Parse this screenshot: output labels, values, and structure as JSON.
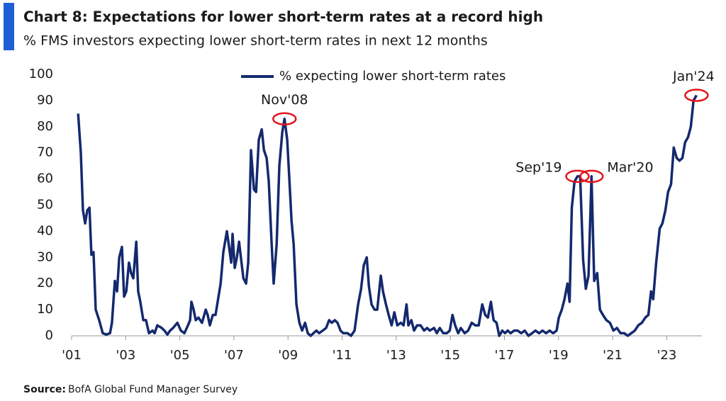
{
  "chart_data": {
    "type": "line",
    "title": "Chart 8: Expectations for lower short-term rates at a record high",
    "subtitle": "% FMS investors expecting lower short-term rates in next 12 months",
    "source_label": "Source:",
    "source": "BofA Global Fund Manager Survey",
    "legend": "top",
    "x": [
      2001.24,
      2001.34,
      2001.42,
      2001.5,
      2001.58,
      2001.66,
      2001.73,
      2001.81,
      2001.89,
      2002.02,
      2002.15,
      2002.28,
      2002.42,
      2002.49,
      2002.6,
      2002.68,
      2002.76,
      2002.86,
      2002.94,
      2003.02,
      2003.12,
      2003.2,
      2003.28,
      2003.39,
      2003.46,
      2003.54,
      2003.65,
      2003.75,
      2003.86,
      2003.99,
      2004.07,
      2004.17,
      2004.33,
      2004.43,
      2004.54,
      2004.64,
      2004.75,
      2004.91,
      2005.04,
      2005.17,
      2005.3,
      2005.38,
      2005.43,
      2005.51,
      2005.59,
      2005.69,
      2005.82,
      2005.96,
      2006.03,
      2006.11,
      2006.22,
      2006.32,
      2006.43,
      2006.51,
      2006.61,
      2006.74,
      2006.82,
      2006.9,
      2006.95,
      2007.03,
      2007.11,
      2007.19,
      2007.27,
      2007.35,
      2007.45,
      2007.53,
      2007.63,
      2007.74,
      2007.82,
      2007.92,
      2008.03,
      2008.11,
      2008.21,
      2008.29,
      2008.39,
      2008.47,
      2008.58,
      2008.68,
      2008.79,
      2008.87,
      2008.97,
      2009.05,
      2009.13,
      2009.21,
      2009.31,
      2009.42,
      2009.52,
      2009.63,
      2009.73,
      2009.84,
      2009.94,
      2010.05,
      2010.15,
      2010.28,
      2010.41,
      2010.52,
      2010.62,
      2010.73,
      2010.83,
      2010.94,
      2011.04,
      2011.2,
      2011.33,
      2011.46,
      2011.59,
      2011.7,
      2011.8,
      2011.91,
      2011.99,
      2012.09,
      2012.2,
      2012.3,
      2012.43,
      2012.51,
      2012.62,
      2012.72,
      2012.83,
      2012.93,
      2013.04,
      2013.17,
      2013.27,
      2013.38,
      2013.45,
      2013.56,
      2013.66,
      2013.77,
      2013.9,
      2014.03,
      2014.14,
      2014.24,
      2014.4,
      2014.5,
      2014.61,
      2014.74,
      2014.87,
      2014.98,
      2015.08,
      2015.18,
      2015.29,
      2015.39,
      2015.53,
      2015.66,
      2015.79,
      2015.92,
      2016.05,
      2016.18,
      2016.29,
      2016.39,
      2016.5,
      2016.6,
      2016.71,
      2016.81,
      2016.92,
      2017.02,
      2017.12,
      2017.23,
      2017.36,
      2017.49,
      2017.62,
      2017.75,
      2017.89,
      2018.02,
      2018.15,
      2018.28,
      2018.41,
      2018.54,
      2018.67,
      2018.8,
      2018.93,
      2019.01,
      2019.12,
      2019.22,
      2019.33,
      2019.41,
      2019.49,
      2019.59,
      2019.7,
      2019.8,
      2019.91,
      2020.01,
      2020.11,
      2020.22,
      2020.32,
      2020.43,
      2020.53,
      2020.64,
      2020.77,
      2020.9,
      2021.03,
      2021.16,
      2021.29,
      2021.43,
      2021.56,
      2021.69,
      2021.82,
      2021.95,
      2022.08,
      2022.21,
      2022.32,
      2022.42,
      2022.5,
      2022.61,
      2022.74,
      2022.84,
      2022.95,
      2023.05,
      2023.16,
      2023.26,
      2023.37,
      2023.47,
      2023.58,
      2023.68,
      2023.79,
      2023.89,
      2023.99,
      2024.1
    ],
    "series": [
      {
        "name": "% expecting lower short-term rates",
        "color": "#14296e",
        "values": [
          85,
          70,
          48,
          43,
          48,
          49,
          31,
          32,
          10,
          6,
          1,
          0.5,
          1,
          5,
          21,
          17,
          30,
          34,
          15,
          17,
          28,
          24,
          22,
          36,
          17,
          13,
          6,
          6,
          1,
          2,
          1,
          4,
          3,
          2,
          0.5,
          2,
          3,
          5,
          2,
          1,
          4,
          6,
          13,
          10,
          6,
          7,
          5,
          10,
          8,
          4,
          8,
          8,
          15,
          20,
          32,
          40,
          34,
          28,
          39,
          26,
          30,
          36,
          29,
          22,
          20,
          28,
          71,
          56,
          55,
          75,
          79,
          71,
          68,
          59,
          36,
          20,
          35,
          65,
          78,
          83,
          75,
          60,
          44,
          35,
          12,
          5,
          2,
          5,
          1,
          0,
          1,
          2,
          1,
          2,
          3,
          6,
          5,
          6,
          5,
          2,
          1,
          1,
          0,
          2,
          12,
          18,
          27,
          30,
          19,
          12,
          10,
          10,
          23,
          17,
          12,
          8,
          4,
          9,
          4,
          5,
          4,
          12,
          4,
          6,
          2,
          4,
          4,
          2,
          3,
          2,
          3,
          1,
          3,
          1,
          1,
          2,
          8,
          4,
          1,
          3,
          1,
          2,
          5,
          4,
          4,
          12,
          8,
          7,
          13,
          6,
          5,
          0,
          2,
          1,
          2,
          1,
          2,
          2,
          1,
          2,
          0,
          1,
          2,
          1,
          2,
          1,
          2,
          1,
          2,
          7,
          10,
          14,
          20,
          13,
          49,
          59,
          61,
          61,
          29,
          18,
          23,
          61,
          21,
          24,
          10,
          8,
          6,
          5,
          2,
          3,
          1,
          1,
          0,
          1,
          2,
          4,
          5,
          7,
          8,
          17,
          14,
          28,
          41,
          43,
          48,
          55,
          58,
          72,
          68,
          67,
          68,
          74,
          76,
          80,
          90,
          92
        ]
      }
    ],
    "annotations": [
      {
        "text": "Nov'08",
        "x": 2008.87
      },
      {
        "text": "Sep'19",
        "x": 2019.7
      },
      {
        "text": "Mar'20",
        "x": 2020.22
      },
      {
        "text": "Jan'24",
        "x": 2024.1
      }
    ],
    "annotation_color": "#e3141b",
    "xlim": [
      2001,
      2024.3
    ],
    "xticks": [
      {
        "value": 2001,
        "label": "'01"
      },
      {
        "value": 2003,
        "label": "'03"
      },
      {
        "value": 2005,
        "label": "'05"
      },
      {
        "value": 2007,
        "label": "'07"
      },
      {
        "value": 2009,
        "label": "'09"
      },
      {
        "value": 2011,
        "label": "'11"
      },
      {
        "value": 2013,
        "label": "'13"
      },
      {
        "value": 2015,
        "label": "'15"
      },
      {
        "value": 2017,
        "label": "'17"
      },
      {
        "value": 2019,
        "label": "'19"
      },
      {
        "value": 2021,
        "label": "'21"
      },
      {
        "value": 2023,
        "label": "'23"
      }
    ],
    "ylim": [
      0,
      100
    ],
    "yticks": [
      0,
      10,
      20,
      30,
      40,
      50,
      60,
      70,
      80,
      90,
      100
    ],
    "grid": false
  }
}
